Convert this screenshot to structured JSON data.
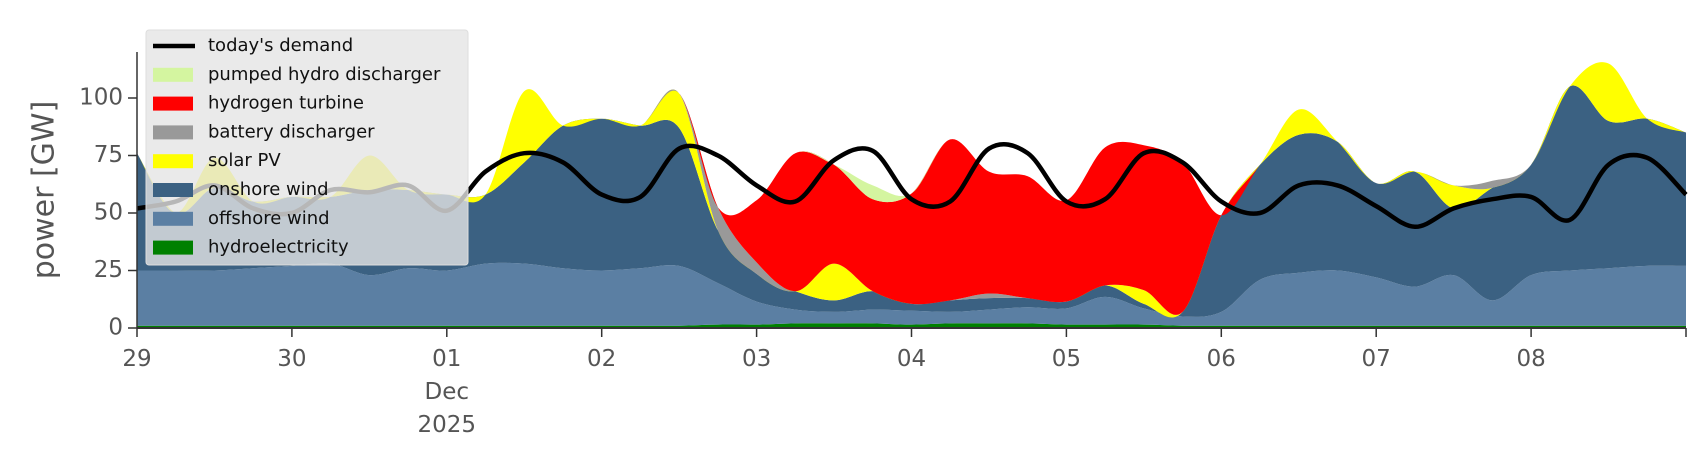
{
  "chart_data": {
    "type": "area",
    "stacked": true,
    "title": "",
    "xlabel": "",
    "ylabel": "power [GW]",
    "ylim": [
      0,
      120
    ],
    "xlim": [
      "2025-11-29",
      "2025-12-09"
    ],
    "grid": false,
    "legend_position": "top-left",
    "y_ticks": [
      "0",
      "25",
      "50",
      "75",
      "100"
    ],
    "x_ticks": [
      {
        "date": "2025-11-29",
        "label": "29"
      },
      {
        "date": "2025-11-30",
        "label": "30"
      },
      {
        "date": "2025-12-01",
        "label": "01",
        "sub1": "Dec",
        "sub2": "2025"
      },
      {
        "date": "2025-12-02",
        "label": "02"
      },
      {
        "date": "2025-12-03",
        "label": "03"
      },
      {
        "date": "2025-12-04",
        "label": "04"
      },
      {
        "date": "2025-12-05",
        "label": "05"
      },
      {
        "date": "2025-12-06",
        "label": "06"
      },
      {
        "date": "2025-12-07",
        "label": "07"
      },
      {
        "date": "2025-12-08",
        "label": "08"
      }
    ],
    "x": [
      "2025-11-29 00:00",
      "2025-11-29 06:00",
      "2025-11-29 12:00",
      "2025-11-29 18:00",
      "2025-11-30 00:00",
      "2025-11-30 06:00",
      "2025-11-30 12:00",
      "2025-11-30 18:00",
      "2025-12-01 00:00",
      "2025-12-01 06:00",
      "2025-12-01 12:00",
      "2025-12-01 18:00",
      "2025-12-02 00:00",
      "2025-12-02 06:00",
      "2025-12-02 12:00",
      "2025-12-02 18:00",
      "2025-12-03 00:00",
      "2025-12-03 06:00",
      "2025-12-03 12:00",
      "2025-12-03 18:00",
      "2025-12-04 00:00",
      "2025-12-04 06:00",
      "2025-12-04 12:00",
      "2025-12-04 18:00",
      "2025-12-05 00:00",
      "2025-12-05 06:00",
      "2025-12-05 12:00",
      "2025-12-05 18:00",
      "2025-12-06 00:00",
      "2025-12-06 06:00",
      "2025-12-06 12:00",
      "2025-12-06 18:00",
      "2025-12-07 00:00",
      "2025-12-07 06:00",
      "2025-12-07 12:00",
      "2025-12-07 18:00",
      "2025-12-08 00:00",
      "2025-12-08 06:00",
      "2025-12-08 12:00",
      "2025-12-08 18:00",
      "2025-12-09 00:00"
    ],
    "series": [
      {
        "name": "hydroelectricity",
        "color": "#008000",
        "values": [
          1,
          1,
          1,
          1,
          1,
          1,
          1,
          1,
          1,
          1,
          1,
          1,
          1,
          1,
          1,
          1.5,
          1.5,
          2,
          2,
          2,
          1.5,
          2,
          2,
          2,
          1.5,
          1.5,
          1.5,
          1,
          1,
          1,
          1,
          1,
          1,
          1,
          1,
          1,
          1,
          1,
          1,
          1,
          1
        ]
      },
      {
        "name": "offshore wind",
        "color": "#5b7fa3",
        "values": [
          24,
          24,
          24,
          25,
          26,
          27,
          22,
          25,
          24,
          27,
          27,
          25,
          24,
          25,
          26,
          18,
          10,
          6,
          5,
          6,
          6,
          5,
          6,
          7,
          7,
          12,
          7,
          4,
          6,
          20,
          23,
          24,
          21,
          17,
          22,
          11,
          22,
          24,
          25,
          26,
          26
        ]
      },
      {
        "name": "onshore wind",
        "color": "#3b6182",
        "values": [
          51,
          25,
          36,
          29,
          30,
          29,
          37,
          34,
          33,
          30,
          44,
          62,
          66,
          62,
          60,
          23,
          12,
          8,
          5,
          8,
          3,
          5,
          5,
          4,
          3,
          5,
          2,
          2,
          42,
          50,
          60,
          56,
          41,
          50,
          29,
          49,
          48,
          80,
          64,
          64,
          58
        ]
      },
      {
        "name": "solar PV",
        "color": "#ffff00",
        "values": [
          0,
          0,
          13,
          0,
          0,
          0,
          15,
          0,
          0,
          0,
          31,
          0,
          0,
          0,
          15,
          0,
          0,
          0,
          16,
          0,
          0,
          0,
          0,
          0,
          0,
          0,
          6,
          0,
          0,
          0,
          11,
          0,
          0,
          0,
          10,
          0,
          0,
          0,
          25,
          0,
          0
        ]
      },
      {
        "name": "battery discharger",
        "color": "#999999",
        "values": [
          0,
          0,
          0,
          0,
          0,
          0,
          0,
          0,
          0,
          0,
          0,
          0,
          0,
          0,
          0,
          10,
          5,
          0,
          0,
          0,
          0,
          0,
          2,
          0,
          0,
          0,
          0,
          0,
          0,
          0,
          0,
          0,
          0,
          0,
          0,
          3,
          0,
          0,
          0,
          0,
          0
        ]
      },
      {
        "name": "hydrogen turbine",
        "color": "#ff0000",
        "values": [
          0,
          0,
          0,
          0,
          0,
          0,
          0,
          0,
          0,
          0,
          0,
          0,
          0,
          0,
          0,
          0,
          27,
          60,
          43,
          40,
          48,
          70,
          53,
          53,
          44,
          60,
          63,
          65,
          0,
          0,
          0,
          0,
          0,
          0,
          0,
          0,
          0,
          0,
          0,
          0,
          0
        ]
      },
      {
        "name": "pumped hydro discharger",
        "color": "#d4f5a0",
        "values": [
          0,
          0,
          0,
          0,
          0,
          0,
          0,
          0,
          0,
          0,
          0,
          0,
          0,
          0,
          0,
          0,
          0,
          0,
          0,
          6,
          0,
          0,
          0,
          0,
          0,
          0,
          0,
          0,
          0,
          0,
          0,
          0,
          0,
          0,
          0,
          0,
          0,
          0,
          0,
          0,
          0
        ]
      }
    ],
    "demand": {
      "name": "today's demand",
      "color": "#000000",
      "values": [
        52,
        55,
        62,
        52,
        50,
        60,
        59,
        62,
        51,
        68,
        76,
        72,
        58,
        57,
        78,
        75,
        62,
        55,
        73,
        77,
        56,
        55,
        78,
        76,
        55,
        56,
        76,
        72,
        55,
        50,
        62,
        62,
        53,
        44,
        52,
        56,
        57,
        47,
        71,
        74,
        58
      ]
    },
    "legend": [
      "today's demand",
      "pumped hydro discharger",
      "hydrogen turbine",
      "battery discharger",
      "solar PV",
      "onshore wind",
      "offshore wind",
      "hydroelectricity"
    ]
  }
}
